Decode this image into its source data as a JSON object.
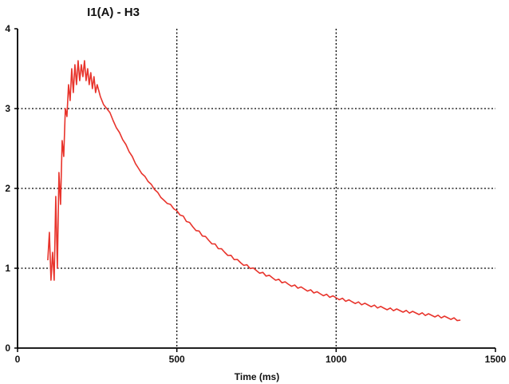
{
  "chart_data": {
    "type": "line",
    "title": "I1(A) - H3",
    "xlabel": "Time (ms)",
    "ylabel": "",
    "xlim": [
      0,
      1500
    ],
    "ylim": [
      0,
      4
    ],
    "xticks": [
      0,
      500,
      1000,
      1500
    ],
    "yticks": [
      0,
      1,
      2,
      3,
      4
    ],
    "grid": true,
    "colors": {
      "line": "#e8342c",
      "grid": "#000000",
      "axis": "#000000"
    },
    "series": [
      {
        "x": [
          95,
          100,
          105,
          110,
          115,
          120,
          125,
          130,
          135,
          140,
          145,
          150,
          155,
          160,
          165,
          170,
          175,
          180,
          185,
          190,
          195,
          200,
          205,
          210,
          215,
          220,
          225,
          230,
          235,
          240,
          245,
          250,
          260,
          270,
          280,
          290,
          300,
          320,
          340,
          360,
          380,
          400,
          420,
          440,
          460,
          480,
          500,
          550,
          600,
          650,
          700,
          750,
          800,
          850,
          900,
          950,
          1000,
          1050,
          1100,
          1150,
          1200,
          1250,
          1300,
          1350,
          1390
        ],
        "y": [
          1.1,
          1.45,
          0.85,
          1.2,
          0.85,
          1.9,
          1.0,
          2.2,
          1.8,
          2.6,
          2.4,
          3.0,
          2.9,
          3.3,
          3.1,
          3.5,
          3.2,
          3.55,
          3.3,
          3.6,
          3.35,
          3.55,
          3.4,
          3.6,
          3.35,
          3.5,
          3.3,
          3.45,
          3.25,
          3.4,
          3.2,
          3.3,
          3.15,
          3.05,
          3.0,
          2.95,
          2.85,
          2.7,
          2.55,
          2.4,
          2.25,
          2.15,
          2.05,
          1.95,
          1.85,
          1.8,
          1.72,
          1.52,
          1.35,
          1.2,
          1.07,
          0.97,
          0.88,
          0.8,
          0.74,
          0.68,
          0.63,
          0.58,
          0.54,
          0.5,
          0.47,
          0.44,
          0.41,
          0.38,
          0.35
        ]
      }
    ]
  }
}
